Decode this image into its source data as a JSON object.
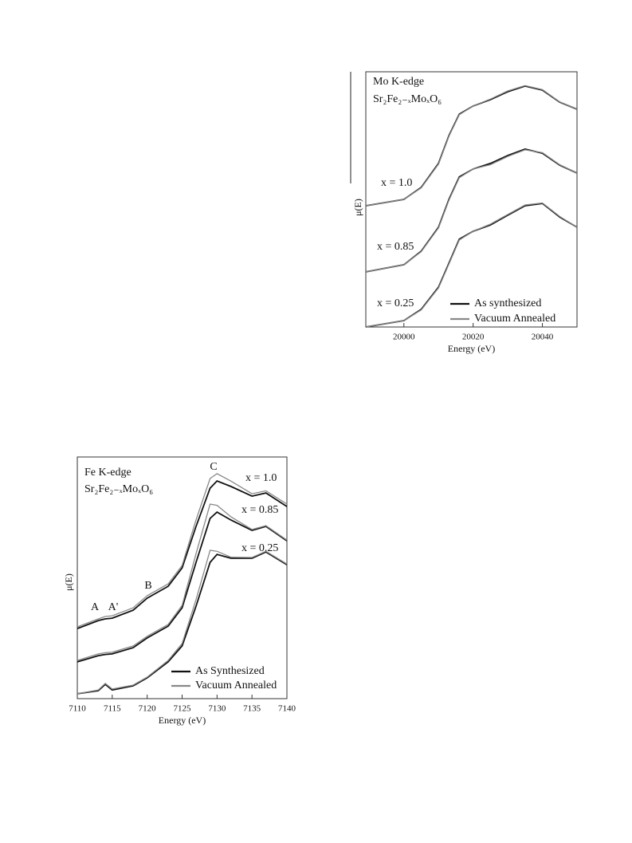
{
  "chart_data": [
    {
      "type": "line",
      "title": "Mo K-edge",
      "subtitle": "Sr₂Fe₂₋ₓMoₓO₆",
      "x_label": "Energy (eV)",
      "y_label": "μ(E)",
      "x": [
        19989,
        20000,
        20005,
        20010,
        20013,
        20016,
        20020,
        20025,
        20030,
        20035,
        20040,
        20045,
        20050
      ],
      "xlim": [
        19989,
        20050
      ],
      "xticks": [
        20000,
        20020,
        20040
      ],
      "ylim": [
        0,
        1
      ],
      "legend": [
        {
          "name": "As synthesized",
          "color": "#111111"
        },
        {
          "name": "Vacuum Annealed",
          "color": "#888888"
        }
      ],
      "series": [
        {
          "name": "x = 1.0",
          "as_synthesized": [
            0.475,
            0.5,
            0.547,
            0.641,
            0.75,
            0.834,
            0.866,
            0.891,
            0.922,
            0.944,
            0.928,
            0.881,
            0.853
          ],
          "vacuum_annealed": [
            0.475,
            0.5,
            0.545,
            0.638,
            0.748,
            0.832,
            0.866,
            0.893,
            0.925,
            0.946,
            0.93,
            0.882,
            0.853
          ]
        },
        {
          "name": "x = 0.85",
          "as_synthesized": [
            0.216,
            0.244,
            0.297,
            0.391,
            0.5,
            0.588,
            0.619,
            0.641,
            0.672,
            0.697,
            0.681,
            0.634,
            0.603
          ],
          "vacuum_annealed": [
            0.216,
            0.244,
            0.295,
            0.388,
            0.497,
            0.585,
            0.619,
            0.636,
            0.668,
            0.694,
            0.683,
            0.636,
            0.603
          ]
        },
        {
          "name": "x = 0.25",
          "as_synthesized": [
            0,
            0.025,
            0.069,
            0.156,
            0.25,
            0.344,
            0.375,
            0.4,
            0.438,
            0.475,
            0.484,
            0.431,
            0.391
          ],
          "vacuum_annealed": [
            0,
            0.025,
            0.067,
            0.153,
            0.247,
            0.341,
            0.375,
            0.403,
            0.441,
            0.478,
            0.486,
            0.433,
            0.391
          ]
        }
      ]
    },
    {
      "type": "line",
      "title": "Fe K-edge",
      "subtitle": "Sr₂Fe₂₋ₓMoₓO₆",
      "x_label": "Energy (eV)",
      "y_label": "μ(E)",
      "x": [
        7110,
        7113,
        7114,
        7115,
        7118,
        7120,
        7123,
        7125,
        7127,
        7129,
        7130,
        7132,
        7135,
        7137,
        7140
      ],
      "xlim": [
        7110,
        7140
      ],
      "xticks": [
        7110,
        7115,
        7120,
        7125,
        7130,
        7135,
        7140
      ],
      "ylim": [
        0,
        1
      ],
      "annotations": [
        "A",
        "A'",
        "B",
        "C"
      ],
      "legend": [
        {
          "name": "As Synthesized",
          "color": "#111111"
        },
        {
          "name": "Vacuum Annealed",
          "color": "#888888"
        }
      ],
      "series": [
        {
          "name": "x = 1.0",
          "as_synthesized": [
            0.29,
            0.323,
            0.33,
            0.333,
            0.366,
            0.416,
            0.465,
            0.541,
            0.713,
            0.871,
            0.901,
            0.878,
            0.838,
            0.851,
            0.795
          ],
          "vacuum_annealed": [
            0.297,
            0.33,
            0.34,
            0.343,
            0.376,
            0.426,
            0.475,
            0.551,
            0.74,
            0.911,
            0.931,
            0.9,
            0.848,
            0.86,
            0.805
          ]
        },
        {
          "name": "x = 0.85",
          "as_synthesized": [
            0.152,
            0.178,
            0.183,
            0.185,
            0.211,
            0.251,
            0.3,
            0.376,
            0.564,
            0.746,
            0.772,
            0.739,
            0.696,
            0.713,
            0.653
          ],
          "vacuum_annealed": [
            0.158,
            0.185,
            0.19,
            0.192,
            0.218,
            0.258,
            0.307,
            0.386,
            0.6,
            0.805,
            0.8,
            0.752,
            0.7,
            0.716,
            0.656
          ]
        },
        {
          "name": "x = 0.25",
          "as_synthesized": [
            0.02,
            0.033,
            0.059,
            0.036,
            0.053,
            0.086,
            0.152,
            0.218,
            0.383,
            0.564,
            0.597,
            0.581,
            0.581,
            0.607,
            0.554
          ],
          "vacuum_annealed": [
            0.02,
            0.036,
            0.063,
            0.04,
            0.056,
            0.089,
            0.158,
            0.228,
            0.41,
            0.614,
            0.61,
            0.585,
            0.584,
            0.61,
            0.557
          ]
        }
      ]
    }
  ]
}
